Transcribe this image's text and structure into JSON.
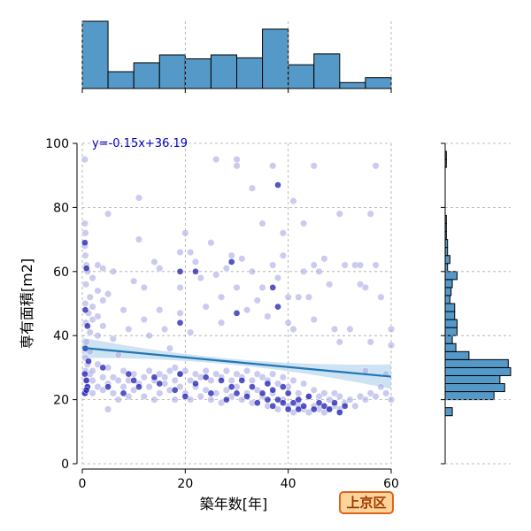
{
  "chart_data": {
    "type": "scatter",
    "xlabel": "築年数[年]",
    "ylabel": "専有面積[m2]",
    "xlim": [
      0,
      60
    ],
    "ylim": [
      0,
      100
    ],
    "xticks": [
      0,
      20,
      40,
      60
    ],
    "yticks": [
      0,
      20,
      40,
      60,
      80,
      100
    ],
    "grid": true,
    "annotation": "y=-0.15x+36.19",
    "regression": {
      "slope": -0.15,
      "intercept": 36.19
    },
    "badge": "上京区",
    "colors": {
      "points_light": "#a9a9e6",
      "points_dark": "#1c1cb0",
      "regression_line": "#1f77b4",
      "confidence_band": "#bcd8ee",
      "hist_fill": "#5599c8",
      "annotation_text": "#0000c0",
      "badge_border": "#e0641e",
      "badge_fill": "#ffd49a"
    },
    "x_histogram": {
      "bin_edges": [
        0,
        5,
        10,
        15,
        20,
        25,
        30,
        35,
        40,
        45,
        50,
        55,
        60
      ],
      "counts": [
        68,
        17,
        26,
        34,
        30,
        34,
        31,
        60,
        24,
        35,
        6,
        11
      ]
    },
    "y_histogram": {
      "bin_edges": [
        0,
        2.5,
        5,
        7.5,
        10,
        12.5,
        15,
        17.5,
        20,
        22.5,
        25,
        27.5,
        30,
        32.5,
        35,
        37.5,
        40,
        42.5,
        45,
        47.5,
        50,
        52.5,
        55,
        57.5,
        60,
        62.5,
        65,
        67.5,
        70,
        72.5,
        75,
        77.5,
        80,
        82.5,
        85,
        87.5,
        90,
        92.5,
        95,
        97.5,
        100
      ],
      "counts": [
        0,
        0,
        0,
        0,
        0,
        0,
        6,
        0,
        41,
        50,
        46,
        55,
        53,
        20,
        9,
        6,
        10,
        10,
        8,
        8,
        4,
        5,
        6,
        10,
        2,
        4,
        2,
        2,
        1,
        1,
        1,
        0,
        0,
        0,
        0,
        0,
        0,
        1,
        1,
        0
      ]
    },
    "series": [
      {
        "points": [
          [
            0.5,
            95
          ],
          [
            0.5,
            75
          ],
          [
            0.6,
            72
          ],
          [
            0.5,
            68
          ],
          [
            0.6,
            65
          ],
          [
            0.8,
            62
          ],
          [
            1.0,
            60
          ],
          [
            0.7,
            56
          ],
          [
            1.5,
            52
          ],
          [
            0.6,
            50
          ],
          [
            1.2,
            47
          ],
          [
            0.7,
            44
          ],
          [
            1.5,
            41
          ],
          [
            0.8,
            38
          ],
          [
            1.5,
            35
          ],
          [
            0.6,
            33
          ],
          [
            1.0,
            31
          ],
          [
            0.6,
            29
          ],
          [
            1.5,
            28
          ],
          [
            0.7,
            26
          ],
          [
            1.0,
            24
          ],
          [
            0.6,
            22
          ],
          [
            2,
            58
          ],
          [
            2,
            49
          ],
          [
            2,
            45
          ],
          [
            3,
            62
          ],
          [
            3,
            54
          ],
          [
            3,
            46
          ],
          [
            3,
            40
          ],
          [
            4,
            61
          ],
          [
            4,
            51
          ],
          [
            4,
            43
          ],
          [
            5,
            78
          ],
          [
            5,
            53
          ],
          [
            5,
            17
          ],
          [
            6,
            60
          ],
          [
            6,
            39
          ],
          [
            7,
            34
          ],
          [
            8,
            48
          ],
          [
            9,
            42
          ],
          [
            10,
            57
          ],
          [
            11,
            83
          ],
          [
            11,
            70
          ],
          [
            12,
            55
          ],
          [
            12,
            45
          ],
          [
            13,
            40
          ],
          [
            14,
            63
          ],
          [
            15,
            61
          ],
          [
            15,
            48
          ],
          [
            16,
            42
          ],
          [
            17,
            36
          ],
          [
            18,
            30
          ],
          [
            19,
            66
          ],
          [
            19,
            55
          ],
          [
            19,
            47
          ],
          [
            20,
            72
          ],
          [
            21,
            66
          ],
          [
            21,
            41
          ],
          [
            22,
            63
          ],
          [
            23,
            58
          ],
          [
            24,
            49
          ],
          [
            25,
            69
          ],
          [
            26,
            95
          ],
          [
            26,
            59
          ],
          [
            27,
            52
          ],
          [
            27,
            44
          ],
          [
            28,
            61
          ],
          [
            29,
            65
          ],
          [
            30,
            95
          ],
          [
            30,
            93
          ],
          [
            30,
            55
          ],
          [
            31,
            64
          ],
          [
            32,
            48
          ],
          [
            33,
            86
          ],
          [
            33,
            60
          ],
          [
            34,
            51
          ],
          [
            35,
            75
          ],
          [
            35,
            55
          ],
          [
            36,
            46
          ],
          [
            37,
            93
          ],
          [
            37,
            62
          ],
          [
            38,
            58
          ],
          [
            39,
            72
          ],
          [
            39,
            65
          ],
          [
            40,
            52
          ],
          [
            40,
            44
          ],
          [
            41,
            82
          ],
          [
            41,
            42
          ],
          [
            42,
            52
          ],
          [
            43,
            75
          ],
          [
            43,
            60
          ],
          [
            44,
            52
          ],
          [
            45,
            93
          ],
          [
            45,
            62
          ],
          [
            45,
            45
          ],
          [
            46,
            60
          ],
          [
            47,
            64
          ],
          [
            48,
            56
          ],
          [
            49,
            42
          ],
          [
            50,
            38
          ],
          [
            50,
            78
          ],
          [
            51,
            62
          ],
          [
            52,
            42
          ],
          [
            53,
            62
          ],
          [
            54,
            62
          ],
          [
            54,
            56
          ],
          [
            55,
            55
          ],
          [
            55,
            29
          ],
          [
            56,
            78
          ],
          [
            56,
            38
          ],
          [
            57,
            93
          ],
          [
            57,
            62
          ],
          [
            58,
            52
          ],
          [
            59,
            28
          ],
          [
            60,
            42
          ],
          [
            60,
            37
          ],
          [
            2,
            29
          ],
          [
            2,
            26
          ],
          [
            2,
            22
          ],
          [
            3,
            31
          ],
          [
            3,
            24
          ],
          [
            4,
            27
          ],
          [
            4,
            23
          ],
          [
            5,
            30
          ],
          [
            5,
            25
          ],
          [
            6,
            27
          ],
          [
            6,
            22
          ],
          [
            7,
            26
          ],
          [
            7,
            20
          ],
          [
            8,
            29
          ],
          [
            8,
            24
          ],
          [
            9,
            26
          ],
          [
            9,
            21
          ],
          [
            10,
            28
          ],
          [
            10,
            23
          ],
          [
            11,
            25
          ],
          [
            12,
            27
          ],
          [
            12,
            21
          ],
          [
            13,
            29
          ],
          [
            13,
            24
          ],
          [
            14,
            26
          ],
          [
            14,
            20
          ],
          [
            15,
            28
          ],
          [
            15,
            22
          ],
          [
            16,
            27
          ],
          [
            16,
            25
          ],
          [
            17,
            29
          ],
          [
            17,
            23
          ],
          [
            18,
            26
          ],
          [
            18,
            20
          ],
          [
            19,
            28
          ],
          [
            19,
            24
          ],
          [
            20,
            29
          ],
          [
            20,
            22
          ],
          [
            21,
            26
          ],
          [
            21,
            20
          ],
          [
            22,
            28
          ],
          [
            22,
            24
          ],
          [
            23,
            27
          ],
          [
            23,
            21
          ],
          [
            24,
            29
          ],
          [
            24,
            23
          ],
          [
            25,
            26
          ],
          [
            25,
            20
          ],
          [
            26,
            28
          ],
          [
            26,
            22
          ],
          [
            27,
            27
          ],
          [
            27,
            19
          ],
          [
            28,
            29
          ],
          [
            28,
            23
          ],
          [
            29,
            26
          ],
          [
            29,
            21
          ],
          [
            30,
            28
          ],
          [
            30,
            24
          ],
          [
            31,
            27
          ],
          [
            31,
            20
          ],
          [
            32,
            29
          ],
          [
            32,
            22
          ],
          [
            33,
            26
          ],
          [
            33,
            19
          ],
          [
            34,
            28
          ],
          [
            34,
            23
          ],
          [
            35,
            27
          ],
          [
            35,
            21
          ],
          [
            36,
            26
          ],
          [
            36,
            18
          ],
          [
            37,
            28
          ],
          [
            37,
            22
          ],
          [
            38,
            25
          ],
          [
            38,
            17
          ],
          [
            39,
            27
          ],
          [
            39,
            20
          ],
          [
            40,
            24
          ],
          [
            40,
            18
          ],
          [
            41,
            26
          ],
          [
            41,
            16
          ],
          [
            42,
            22
          ],
          [
            42,
            18
          ],
          [
            43,
            25
          ],
          [
            43,
            17
          ],
          [
            44,
            21
          ],
          [
            44,
            16
          ],
          [
            45,
            23
          ],
          [
            45,
            18
          ],
          [
            46,
            21
          ],
          [
            46,
            17
          ],
          [
            47,
            22
          ],
          [
            47,
            16
          ],
          [
            48,
            20
          ],
          [
            48,
            17
          ],
          [
            49,
            22
          ],
          [
            49,
            18
          ],
          [
            50,
            21
          ],
          [
            50,
            17
          ],
          [
            51,
            19
          ],
          [
            52,
            20
          ],
          [
            53,
            18
          ],
          [
            54,
            21
          ],
          [
            55,
            20
          ],
          [
            56,
            22
          ],
          [
            57,
            21
          ],
          [
            58,
            24
          ],
          [
            59,
            22
          ],
          [
            60,
            20
          ]
        ],
        "dark_points": [
          [
            0.5,
            69
          ],
          [
            0.8,
            61
          ],
          [
            0.6,
            48
          ],
          [
            1.0,
            43
          ],
          [
            0.6,
            36
          ],
          [
            1.2,
            32
          ],
          [
            0.5,
            28
          ],
          [
            0.8,
            26
          ],
          [
            1.0,
            24
          ],
          [
            0.5,
            22
          ],
          [
            0.8,
            23
          ],
          [
            4,
            30
          ],
          [
            5,
            24
          ],
          [
            8,
            22
          ],
          [
            9,
            28
          ],
          [
            10,
            26
          ],
          [
            11,
            24
          ],
          [
            14,
            27
          ],
          [
            15,
            25
          ],
          [
            18,
            23
          ],
          [
            19,
            28
          ],
          [
            19,
            44
          ],
          [
            19,
            60
          ],
          [
            20,
            21
          ],
          [
            22,
            25
          ],
          [
            24,
            27
          ],
          [
            25,
            22
          ],
          [
            27,
            26
          ],
          [
            28,
            20
          ],
          [
            29,
            24
          ],
          [
            30,
            22
          ],
          [
            31,
            26
          ],
          [
            32,
            21
          ],
          [
            33,
            24
          ],
          [
            34,
            19
          ],
          [
            35,
            22
          ],
          [
            36,
            20
          ],
          [
            36,
            25
          ],
          [
            37,
            18
          ],
          [
            37,
            23
          ],
          [
            38,
            87
          ],
          [
            38,
            20
          ],
          [
            39,
            19
          ],
          [
            39,
            24
          ],
          [
            40,
            17
          ],
          [
            40,
            22
          ],
          [
            41,
            19
          ],
          [
            42,
            20
          ],
          [
            42,
            17
          ],
          [
            43,
            18
          ],
          [
            44,
            21
          ],
          [
            45,
            17
          ],
          [
            46,
            19
          ],
          [
            47,
            18
          ],
          [
            48,
            17
          ],
          [
            49,
            19
          ],
          [
            50,
            16
          ],
          [
            51,
            18
          ],
          [
            38,
            49
          ],
          [
            30,
            47
          ],
          [
            29,
            63
          ],
          [
            22,
            60
          ],
          [
            37,
            55
          ]
        ]
      }
    ]
  }
}
